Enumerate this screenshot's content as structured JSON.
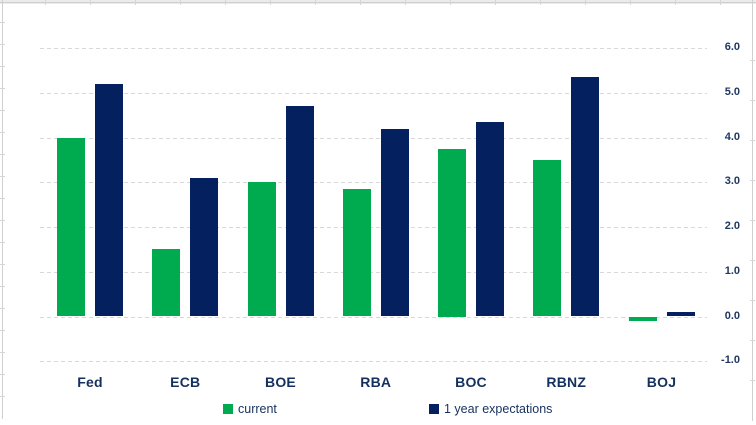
{
  "chart_data": {
    "type": "bar",
    "categories": [
      "Fed",
      "ECB",
      "BOE",
      "RBA",
      "BOC",
      "RBNZ",
      "BOJ"
    ],
    "series": [
      {
        "name": "current",
        "color": "#00ab50",
        "values": [
          4.0,
          1.5,
          3.0,
          2.85,
          3.75,
          3.5,
          -0.1
        ]
      },
      {
        "name": "1 year expectations",
        "color": "#04205e",
        "values": [
          5.2,
          3.1,
          4.7,
          4.2,
          4.35,
          5.35,
          0.1
        ]
      }
    ],
    "ylim": [
      -1.0,
      6.0
    ],
    "yticks": [
      6.0,
      5.0,
      4.0,
      3.0,
      2.0,
      1.0,
      0.0,
      -1.0
    ],
    "ytick_labels": [
      "6.0",
      "5.0",
      "4.0",
      "3.0",
      "2.0",
      "1.0",
      "0.0",
      "-1.0"
    ],
    "axis_side": "right",
    "grid": "horizontal-dashed",
    "legend_position": "bottom"
  },
  "colors": {
    "current_green": "#00ab50",
    "expectations_navy": "#04205e",
    "axis_text": "#1f3864",
    "category_text": "#14305e",
    "gridline": "#d9d9d9"
  }
}
